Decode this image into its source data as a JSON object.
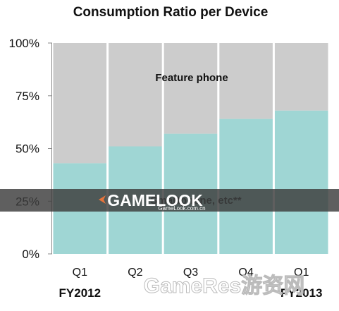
{
  "chart_data": {
    "type": "bar",
    "stacked": true,
    "percent": true,
    "title": "Consumption Ratio per Device",
    "categories": [
      "Q1",
      "Q2",
      "Q3",
      "Q4",
      "Q1"
    ],
    "fiscal_years": [
      {
        "label": "FY2012",
        "category_index": 0
      },
      {
        "label": "FY2013",
        "category_index": 4
      }
    ],
    "series": [
      {
        "name": "Smartphone, etc**",
        "color": "#9fd6d4",
        "values": [
          43,
          51,
          57,
          64,
          68
        ]
      },
      {
        "name": "Feature phone",
        "color": "#cccccc",
        "values": [
          57,
          49,
          43,
          36,
          32
        ]
      }
    ],
    "ylim": [
      0,
      100
    ],
    "yticks": [
      "100%",
      "75%",
      "50%",
      "25%",
      "0%"
    ],
    "xlabel": "",
    "ylabel": "",
    "grid": false
  },
  "watermarks": {
    "band_brand": "GAMELOOK",
    "band_url": "GameLook.com.cn",
    "corner": "GameRes游资网"
  }
}
